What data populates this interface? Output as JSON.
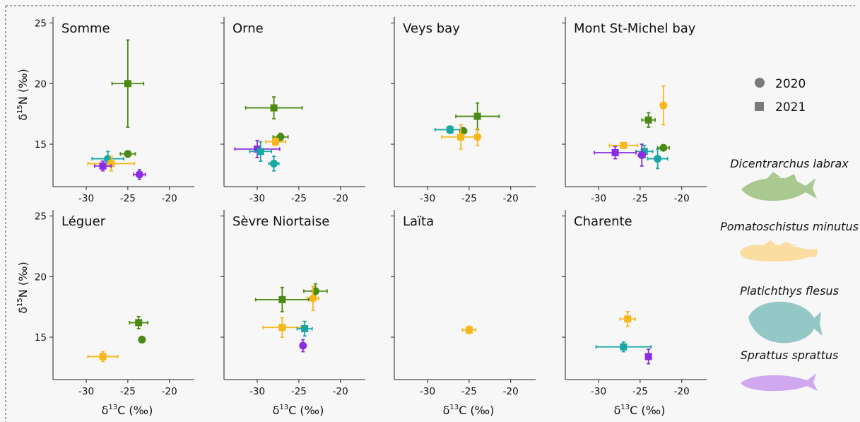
{
  "colors": {
    "Dicentrarchus labrax": "#4b8a14",
    "Pomatoschistus minutus": "#f7b719",
    "Platichthys flesus": "#1aa5a5",
    "Sprattus sprattus": "#8b2be2",
    "Dicentrarchus labrax_silhouette": "#a9c991",
    "Pomatoschistus minutus_silhouette": "#fbdda2",
    "Platichthys flesus_silhouette": "#93c8c7",
    "Sprattus sprattus_silhouette": "#cfa8ef"
  },
  "legend": {
    "years": [
      {
        "label": "2020",
        "shape": "circle"
      },
      {
        "label": "2021",
        "shape": "square"
      }
    ],
    "species": [
      {
        "label": "Dicentrarchus labrax",
        "icon": "fish-silhouette-seabass"
      },
      {
        "label": "Pomatoschistus minutus",
        "icon": "fish-silhouette-goby"
      },
      {
        "label": "Platichthys flesus",
        "icon": "fish-silhouette-flounder"
      },
      {
        "label": "Sprattus sprattus",
        "icon": "fish-silhouette-sprat"
      }
    ]
  },
  "axes": {
    "xlabel_prefix": "δ",
    "xlabel_sup": "13",
    "xlabel_suffix": "C  (‰)",
    "ylabel_prefix": "δ",
    "ylabel_sup": "15",
    "ylabel_suffix": "N (‰)"
  },
  "chart_data": {
    "type": "scatter",
    "subtype": "faceted scatter with error bars",
    "xlim": [
      -34,
      -17
    ],
    "ylim": [
      11.5,
      25.5
    ],
    "xticks": [
      -30,
      -25,
      -20
    ],
    "yticks": [
      15,
      20,
      25
    ],
    "grid": false,
    "legend_position": "right",
    "panels": [
      {
        "title": "Somme",
        "points": [
          {
            "species": "Dicentrarchus labrax",
            "year": "2021",
            "x": -25.0,
            "y": 20.0,
            "xerr": 1.9,
            "yerr": 3.6
          },
          {
            "species": "Dicentrarchus labrax",
            "year": "2020",
            "x": -25.0,
            "y": 14.2,
            "xerr": 0.9,
            "yerr": 0.2
          },
          {
            "species": "Platichthys flesus",
            "year": "2020",
            "x": -27.4,
            "y": 13.8,
            "xerr": 1.9,
            "yerr": 0.6
          },
          {
            "species": "Pomatoschistus minutus",
            "year": "2021",
            "x": -27.0,
            "y": 13.4,
            "xerr": 2.8,
            "yerr": 0.6
          },
          {
            "species": "Sprattus sprattus",
            "year": "2021",
            "x": -28.0,
            "y": 13.2,
            "xerr": 1.0,
            "yerr": 0.4
          },
          {
            "species": "Sprattus sprattus",
            "year": "2020",
            "x": -23.6,
            "y": 12.5,
            "xerr": 0.7,
            "yerr": 0.4
          }
        ]
      },
      {
        "title": "Orne",
        "points": [
          {
            "species": "Dicentrarchus labrax",
            "year": "2021",
            "x": -28.0,
            "y": 18.0,
            "xerr": 3.4,
            "yerr": 0.9
          },
          {
            "species": "Dicentrarchus labrax",
            "year": "2020",
            "x": -27.2,
            "y": 15.6,
            "xerr": 0.9,
            "yerr": 0.3
          },
          {
            "species": "Pomatoschistus minutus",
            "year": "2021",
            "x": -27.8,
            "y": 15.2,
            "xerr": 1.2,
            "yerr": 0.3
          },
          {
            "species": "Sprattus sprattus",
            "year": "2021",
            "x": -30.0,
            "y": 14.6,
            "xerr": 2.7,
            "yerr": 0.7
          },
          {
            "species": "Platichthys flesus",
            "year": "2021",
            "x": -29.6,
            "y": 14.4,
            "xerr": 1.3,
            "yerr": 0.8
          },
          {
            "species": "Platichthys flesus",
            "year": "2020",
            "x": -28.0,
            "y": 13.4,
            "xerr": 0.6,
            "yerr": 0.6
          }
        ]
      },
      {
        "title": "Veys bay",
        "points": [
          {
            "species": "Dicentrarchus labrax",
            "year": "2021",
            "x": -24.0,
            "y": 17.3,
            "xerr": 2.6,
            "yerr": 1.1
          },
          {
            "species": "Platichthys flesus",
            "year": "2021",
            "x": -27.3,
            "y": 16.2,
            "xerr": 1.8,
            "yerr": 0.3
          },
          {
            "species": "Dicentrarchus labrax",
            "year": "2020",
            "x": -25.7,
            "y": 16.1,
            "xerr": 0.4,
            "yerr": 0.2
          },
          {
            "species": "Pomatoschistus minutus",
            "year": "2021",
            "x": -26.0,
            "y": 15.6,
            "xerr": 2.3,
            "yerr": 1.0
          },
          {
            "species": "Pomatoschistus minutus",
            "year": "2020",
            "x": -24.0,
            "y": 15.6,
            "xerr": 0.3,
            "yerr": 0.7
          }
        ]
      },
      {
        "title": "Mont St-Michel bay",
        "points": [
          {
            "species": "Pomatoschistus minutus",
            "year": "2020",
            "x": -22.2,
            "y": 18.2,
            "xerr": 0.3,
            "yerr": 1.6
          },
          {
            "species": "Dicentrarchus labrax",
            "year": "2021",
            "x": -24.0,
            "y": 17.0,
            "xerr": 0.8,
            "yerr": 0.6
          },
          {
            "species": "Pomatoschistus minutus",
            "year": "2021",
            "x": -27.0,
            "y": 14.9,
            "xerr": 1.7,
            "yerr": 0.2
          },
          {
            "species": "Dicentrarchus labrax",
            "year": "2020",
            "x": -22.2,
            "y": 14.7,
            "xerr": 0.7,
            "yerr": 0.2
          },
          {
            "species": "Platichthys flesus",
            "year": "2021",
            "x": -24.5,
            "y": 14.4,
            "xerr": 1.0,
            "yerr": 0.5
          },
          {
            "species": "Sprattus sprattus",
            "year": "2021",
            "x": -28.0,
            "y": 14.3,
            "xerr": 2.5,
            "yerr": 0.5
          },
          {
            "species": "Sprattus sprattus",
            "year": "2020",
            "x": -24.8,
            "y": 14.1,
            "xerr": 0.4,
            "yerr": 0.9
          },
          {
            "species": "Platichthys flesus",
            "year": "2020",
            "x": -22.9,
            "y": 13.8,
            "xerr": 1.2,
            "yerr": 0.8
          }
        ]
      },
      {
        "title": "Léguer",
        "points": [
          {
            "species": "Dicentrarchus labrax",
            "year": "2021",
            "x": -23.7,
            "y": 16.2,
            "xerr": 1.1,
            "yerr": 0.5
          },
          {
            "species": "Dicentrarchus labrax",
            "year": "2020",
            "x": -23.3,
            "y": 14.8,
            "xerr": 0.3,
            "yerr": 0.2
          },
          {
            "species": "Pomatoschistus minutus",
            "year": "2021",
            "x": -28.0,
            "y": 13.4,
            "xerr": 1.8,
            "yerr": 0.4
          }
        ]
      },
      {
        "title": "Sèvre Niortaise",
        "points": [
          {
            "species": "Dicentrarchus labrax",
            "year": "2020",
            "x": -23.0,
            "y": 18.8,
            "xerr": 1.4,
            "yerr": 0.6
          },
          {
            "species": "Pomatoschistus minutus",
            "year": "2020",
            "x": -23.3,
            "y": 18.2,
            "xerr": 0.7,
            "yerr": 1.0
          },
          {
            "species": "Dicentrarchus labrax",
            "year": "2021",
            "x": -27.0,
            "y": 18.1,
            "xerr": 3.2,
            "yerr": 1.0
          },
          {
            "species": "Pomatoschistus minutus",
            "year": "2021",
            "x": -27.0,
            "y": 15.8,
            "xerr": 2.3,
            "yerr": 0.8
          },
          {
            "species": "Platichthys flesus",
            "year": "2021",
            "x": -24.3,
            "y": 15.7,
            "xerr": 0.9,
            "yerr": 0.6
          },
          {
            "species": "Sprattus sprattus",
            "year": "2020",
            "x": -24.5,
            "y": 14.3,
            "xerr": 0.2,
            "yerr": 0.5
          }
        ]
      },
      {
        "title": "Laïta",
        "points": [
          {
            "species": "Pomatoschistus minutus",
            "year": "2021",
            "x": -25.0,
            "y": 15.6,
            "xerr": 0.8,
            "yerr": 0.3
          }
        ]
      },
      {
        "title": "Charente",
        "points": [
          {
            "species": "Pomatoschistus minutus",
            "year": "2021",
            "x": -26.5,
            "y": 16.5,
            "xerr": 0.9,
            "yerr": 0.6
          },
          {
            "species": "Platichthys flesus",
            "year": "2021",
            "x": -27.0,
            "y": 14.2,
            "xerr": 3.3,
            "yerr": 0.4
          },
          {
            "species": "Sprattus sprattus",
            "year": "2021",
            "x": -24.0,
            "y": 13.4,
            "xerr": 0.2,
            "yerr": 0.6
          }
        ]
      }
    ]
  }
}
